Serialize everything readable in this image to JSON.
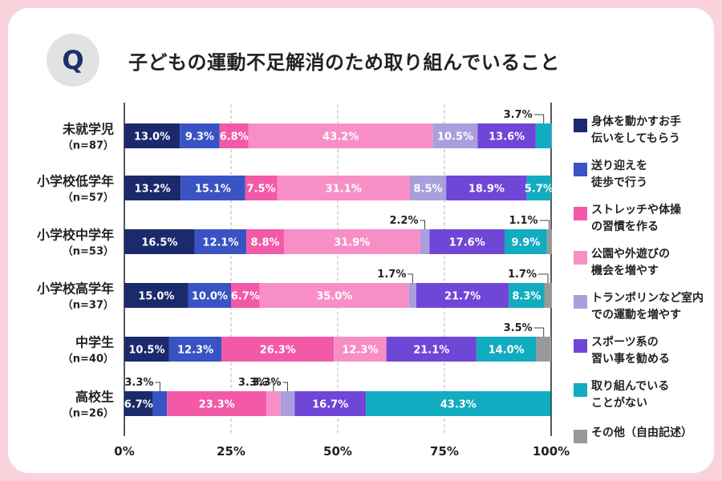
{
  "header": {
    "badge": "Q",
    "title": "子どもの運動不足解消のため取り組んでいること"
  },
  "colors": [
    "#1b2a6b",
    "#3a53c4",
    "#f25aa8",
    "#f78fc6",
    "#a99fdd",
    "#7046d6",
    "#12acc0",
    "#999999"
  ],
  "chart_data": {
    "type": "bar",
    "orientation": "horizontal-stacked-100",
    "xlim": [
      0,
      100
    ],
    "x_ticks": [
      "0%",
      "25%",
      "50%",
      "75%",
      "100%"
    ],
    "categories": [
      {
        "name": "未就学児",
        "n": "（n=87）"
      },
      {
        "name": "小学校低学年",
        "n": "（n=57）"
      },
      {
        "name": "小学校中学年",
        "n": "（n=53）"
      },
      {
        "name": "小学校高学年",
        "n": "（n=37）"
      },
      {
        "name": "中学生",
        "n": "（n=40）"
      },
      {
        "name": "高校生",
        "n": "（n=26）"
      }
    ],
    "series": [
      {
        "name": "身体を動かすお手\n伝いをしてもらう",
        "values": [
          13.0,
          13.2,
          16.5,
          15.0,
          10.5,
          6.7
        ]
      },
      {
        "name": "送り迎えを\n徒歩で行う",
        "values": [
          9.3,
          15.1,
          12.1,
          10.0,
          12.3,
          3.3
        ]
      },
      {
        "name": "ストレッチや体操\nの習慣を作る",
        "values": [
          6.8,
          7.5,
          8.8,
          6.7,
          26.3,
          23.3
        ]
      },
      {
        "name": "公園や外遊びの\n機会を増やす",
        "values": [
          43.2,
          31.1,
          31.9,
          35.0,
          12.3,
          3.3
        ]
      },
      {
        "name": "トランポリンなど室内\nでの運動を増やす",
        "values": [
          10.5,
          8.5,
          2.2,
          1.7,
          0,
          3.3
        ]
      },
      {
        "name": "スポーツ系の\n習い事を勧める",
        "values": [
          13.6,
          18.9,
          17.6,
          21.7,
          21.1,
          16.7
        ]
      },
      {
        "name": "取り組んでいる\nことがない",
        "values": [
          3.7,
          5.7,
          9.9,
          8.3,
          14.0,
          43.3
        ]
      },
      {
        "name": "その他（自由記述）",
        "values": [
          0,
          0,
          1.1,
          1.7,
          3.5,
          0
        ]
      }
    ],
    "labels": [
      [
        "13.0%",
        "9.3%",
        "6.8%",
        "43.2%",
        "10.5%",
        "13.6%",
        "3.7%",
        ""
      ],
      [
        "13.2%",
        "15.1%",
        "7.5%",
        "31.1%",
        "8.5%",
        "18.9%",
        "5.7%",
        ""
      ],
      [
        "16.5%",
        "12.1%",
        "8.8%",
        "31.9%",
        "2.2%",
        "17.6%",
        "9.9%",
        "1.1%"
      ],
      [
        "15.0%",
        "10.0%",
        "6.7%",
        "35.0%",
        "1.7%",
        "21.7%",
        "8.3%",
        "1.7%"
      ],
      [
        "10.5%",
        "12.3%",
        "26.3%",
        "12.3%",
        "",
        "21.1%",
        "14.0%",
        "3.5%"
      ],
      [
        "6.7%",
        "3.3%",
        "23.3%",
        "3.3%",
        "3.3%",
        "16.7%",
        "43.3%",
        ""
      ]
    ]
  }
}
